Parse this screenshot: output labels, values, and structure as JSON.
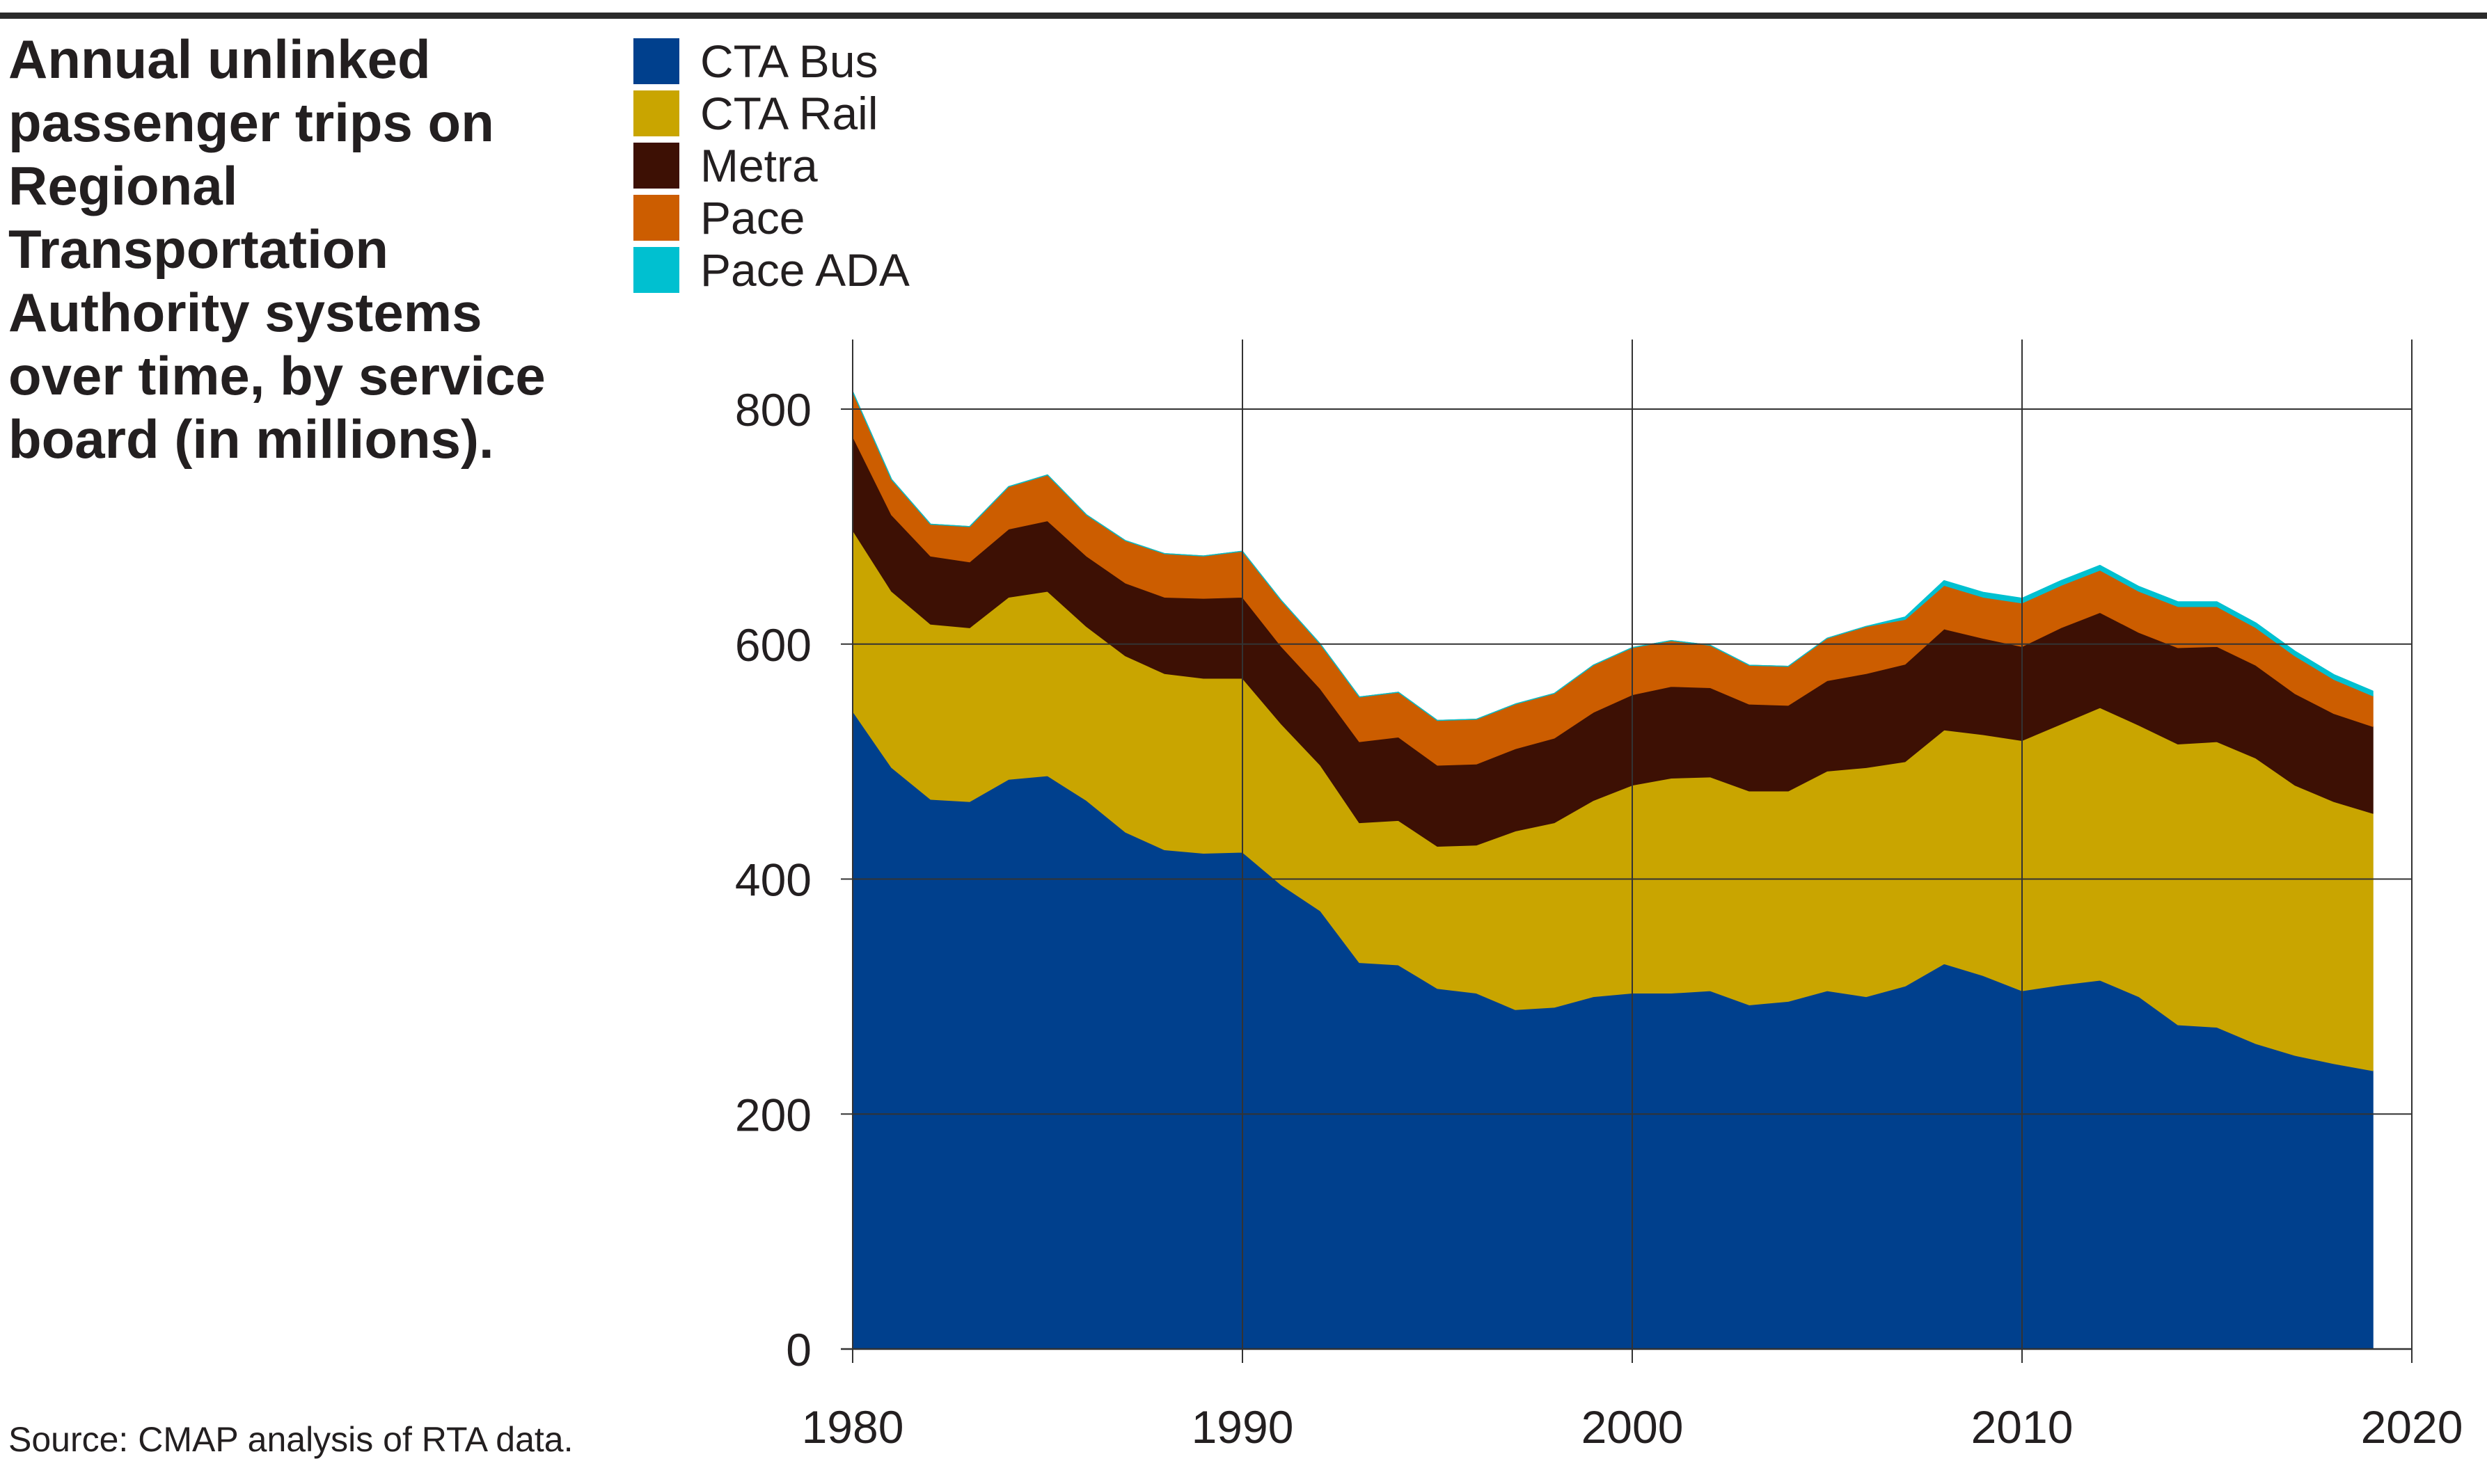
{
  "title": "Annual unlinked passenger trips on Regional Transportation Authority systems over time, by service board (in millions).",
  "source": "Source: CMAP analysis of RTA data.",
  "colors": {
    "cta_bus": "#00408d",
    "cta_rail": "#c9a500",
    "metra": "#3d1004",
    "pace": "#cc5d00",
    "pace_ada": "#00c0d0",
    "grid": "#333333"
  },
  "legend": [
    {
      "label": "CTA Bus",
      "color": "#00408d"
    },
    {
      "label": "CTA Rail",
      "color": "#c9a500"
    },
    {
      "label": "Metra",
      "color": "#3d1004"
    },
    {
      "label": "Pace",
      "color": "#cc5d00"
    },
    {
      "label": "Pace ADA",
      "color": "#00c0d0"
    }
  ],
  "chart_data": {
    "type": "area",
    "stacked": true,
    "title": "Annual unlinked passenger trips on Regional Transportation Authority systems over time, by service board (in millions).",
    "xlabel": "",
    "ylabel": "",
    "xlim": [
      1978,
      2021
    ],
    "ylim": [
      0,
      800
    ],
    "x_ticks": [
      1980,
      1990,
      2000,
      2010,
      2020
    ],
    "y_ticks": [
      0,
      200,
      400,
      600,
      800
    ],
    "grid": true,
    "legend_position": "top-left",
    "x": [
      1980,
      1981,
      1982,
      1983,
      1984,
      1985,
      1986,
      1987,
      1988,
      1989,
      1990,
      1991,
      1992,
      1993,
      1994,
      1995,
      1996,
      1997,
      1998,
      1999,
      2000,
      2001,
      2002,
      2003,
      2004,
      2005,
      2006,
      2007,
      2008,
      2009,
      2010,
      2011,
      2012,
      2013,
      2014,
      2015,
      2016,
      2017,
      2018,
      2019
    ],
    "series": [
      {
        "name": "CTA Bus",
        "color": "#00408d",
        "values": [
          543,
          495,
          468,
          466,
          485,
          488,
          467,
          440,
          425,
          422,
          423,
          395,
          373,
          329,
          327,
          307,
          303,
          289,
          291,
          300,
          303,
          303,
          305,
          293,
          296,
          305,
          300,
          309,
          328,
          318,
          305,
          310,
          314,
          300,
          276,
          274,
          260,
          250,
          243,
          237
        ]
      },
      {
        "name": "CTA Rail",
        "color": "#c9a500",
        "values": [
          154,
          150,
          149,
          148,
          155,
          157,
          148,
          150,
          150,
          149,
          148,
          137,
          124,
          119,
          123,
          121,
          126,
          152,
          157,
          167,
          177,
          183,
          182,
          182,
          179,
          187,
          195,
          191,
          199,
          205,
          213,
          222,
          232,
          231,
          239,
          243,
          243,
          230,
          223,
          219
        ]
      },
      {
        "name": "Metra",
        "color": "#3d1004",
        "values": [
          80,
          65,
          58,
          56,
          58,
          60,
          60,
          62,
          65,
          68,
          69,
          66,
          65,
          69,
          71,
          69,
          69,
          70,
          72,
          75,
          77,
          78,
          76,
          74,
          73,
          77,
          80,
          83,
          86,
          82,
          80,
          82,
          81,
          79,
          82,
          81,
          79,
          78,
          75,
          74
        ]
      },
      {
        "name": "Pace",
        "color": "#cc5d00",
        "values": [
          38,
          30,
          27,
          30,
          36,
          39,
          35,
          36,
          37,
          36,
          39,
          39,
          38,
          38,
          38,
          38,
          38,
          38,
          38,
          40,
          40,
          39,
          36,
          33,
          33,
          36,
          40,
          38,
          37,
          35,
          37,
          36,
          36,
          35,
          35,
          34,
          32,
          32,
          29,
          26
        ]
      },
      {
        "name": "Pace ADA",
        "color": "#00c0d0",
        "values": [
          0,
          0,
          0,
          0,
          0,
          0,
          0,
          0,
          0,
          0,
          0,
          0,
          0,
          0,
          0,
          0,
          0,
          0,
          0,
          0,
          0,
          0,
          0,
          0,
          0,
          0,
          0,
          2,
          4,
          4,
          4,
          4,
          4,
          4,
          4,
          4,
          4,
          4,
          4,
          4
        ]
      }
    ]
  }
}
